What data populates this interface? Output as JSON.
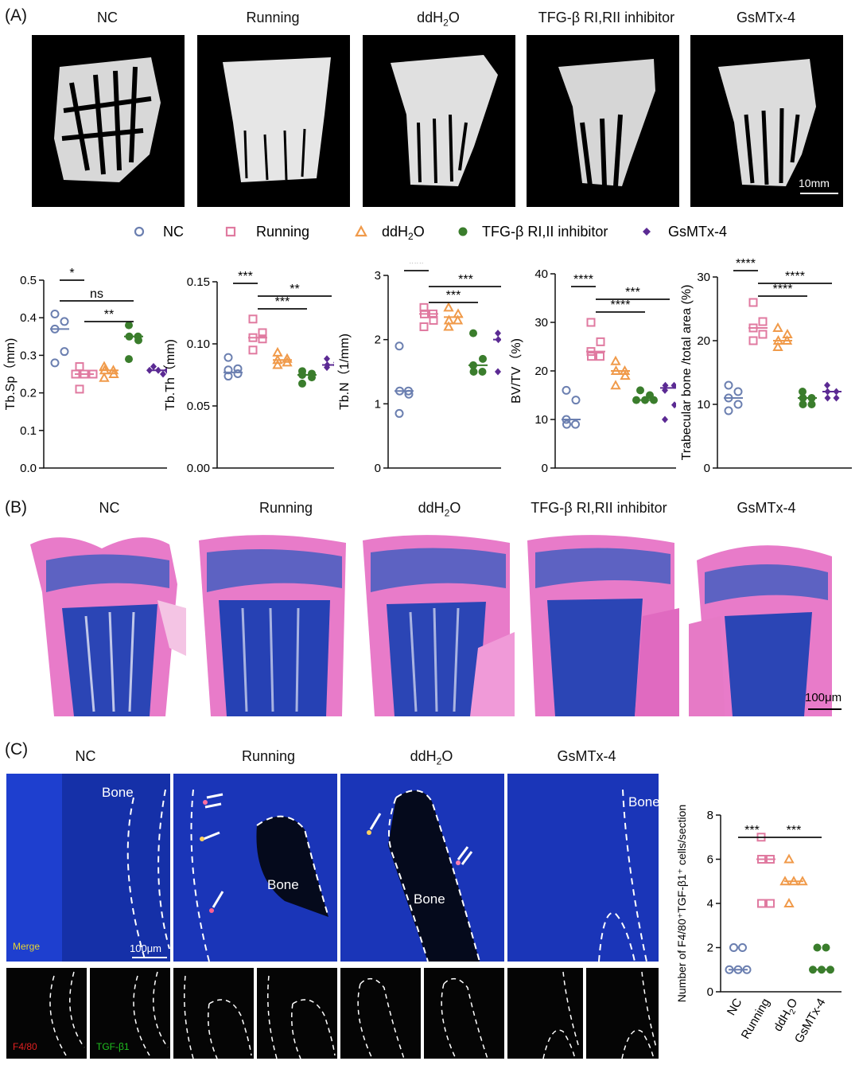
{
  "panelA": {
    "letter": "(A)",
    "groups": [
      "NC",
      "Running",
      "ddH2O",
      "TFG-β RI,RII inhibitor",
      "GsMTx-4"
    ],
    "scalebar": "10mm",
    "legend": [
      "NC",
      "Running",
      "ddH2O",
      "TFG-β RI,II inhibitor",
      "GsMTx-4"
    ]
  },
  "panelB": {
    "letter": "(B)",
    "groups": [
      "NC",
      "Running",
      "ddH2O",
      "TFG-β RI,RII inhibitor",
      "GsMTx-4"
    ],
    "scalebar": "100μm"
  },
  "panelC": {
    "letter": "(C)",
    "groups": [
      "NC",
      "Running",
      "ddH2O",
      "GsMTx-4"
    ],
    "bone": "Bone",
    "merge": "Merge",
    "scalebar": "100μm",
    "f480": "F4/80",
    "tgf": "TGF-β1"
  },
  "colors": {
    "NC": "#6b7fb0",
    "Running": "#e07aa0",
    "ddH2O": "#f09a4a",
    "Inhibitor": "#3a7d2c",
    "GsMTx": "#5b2a93"
  },
  "chart_data": [
    {
      "type": "scatter",
      "ylabel": "Tb.Sp（mm)",
      "ylim": [
        0,
        0.5
      ],
      "yticks": [
        0,
        0.1,
        0.2,
        0.3,
        0.4,
        0.5
      ],
      "categories": [
        "NC",
        "Running",
        "ddH2O",
        "TFG-β RI,II inhibitor",
        "GsMTx-4"
      ],
      "values": [
        [
          0.41,
          0.39,
          0.37,
          0.31,
          0.28
        ],
        [
          0.27,
          0.25,
          0.25,
          0.25,
          0.21
        ],
        [
          0.27,
          0.26,
          0.26,
          0.25,
          0.24
        ],
        [
          0.38,
          0.35,
          0.35,
          0.34,
          0.29
        ],
        [
          0.27,
          0.26,
          0.26,
          0.25,
          0.26
        ]
      ],
      "means": [
        0.37,
        0.25,
        0.26,
        0.35,
        0.26
      ],
      "sig": [
        {
          "a": 0,
          "b": 1,
          "label": "*"
        },
        {
          "a": 0,
          "b": 3,
          "label": "ns"
        },
        {
          "a": 1,
          "b": 3,
          "label": "**"
        }
      ]
    },
    {
      "type": "scatter",
      "ylabel": "Tb.Th（mm)",
      "ylim": [
        0,
        0.15
      ],
      "yticks": [
        0.0,
        0.05,
        0.1,
        0.15
      ],
      "categories": [
        "NC",
        "Running",
        "ddH2O",
        "TFG-β RI,II inhibitor",
        "GsMTx-4"
      ],
      "values": [
        [
          0.089,
          0.08,
          0.079,
          0.076,
          0.074
        ],
        [
          0.12,
          0.109,
          0.105,
          0.104,
          0.095
        ],
        [
          0.093,
          0.088,
          0.087,
          0.085,
          0.083
        ],
        [
          0.078,
          0.076,
          0.075,
          0.073,
          0.068
        ],
        [
          0.088,
          0.085,
          0.083,
          0.083,
          0.081
        ]
      ],
      "means": [
        0.077,
        0.105,
        0.087,
        0.075,
        0.083
      ],
      "sig": [
        {
          "a": 0,
          "b": 1,
          "label": "***"
        },
        {
          "a": 1,
          "b": 4,
          "label": "**"
        },
        {
          "a": 1,
          "b": 3,
          "label": "***"
        }
      ]
    },
    {
      "type": "scatter",
      "ylabel": "Tb.N（1/mm)",
      "ylim": [
        0,
        3
      ],
      "yticks": [
        0,
        1,
        2,
        3
      ],
      "categories": [
        "NC",
        "Running",
        "ddH2O",
        "TFG-β RI,II inhibitor",
        "GsMTx-4"
      ],
      "values": [
        [
          1.9,
          1.2,
          1.2,
          1.15,
          0.85
        ],
        [
          2.5,
          2.4,
          2.4,
          2.3,
          2.2
        ],
        [
          2.5,
          2.4,
          2.3,
          2.3,
          2.2
        ],
        [
          2.1,
          1.7,
          1.6,
          1.5,
          1.5
        ],
        [
          2.1,
          2.0,
          2.0,
          1.7,
          1.5
        ]
      ],
      "means": [
        1.2,
        2.4,
        2.35,
        1.6,
        2.0
      ],
      "sig": [
        {
          "a": 0,
          "b": 1,
          "label": "***"
        },
        {
          "a": 1,
          "b": 4,
          "label": "***"
        },
        {
          "a": 1,
          "b": 3,
          "label": "***"
        }
      ]
    },
    {
      "type": "scatter",
      "ylabel": "BV/TV（%)",
      "ylim": [
        0,
        40
      ],
      "yticks": [
        0,
        10,
        20,
        30,
        40
      ],
      "categories": [
        "NC",
        "Running",
        "ddH2O",
        "TFG-β RI,II inhibitor",
        "GsMTx-4"
      ],
      "values": [
        [
          16,
          14,
          10,
          9,
          9
        ],
        [
          30,
          26,
          24,
          23,
          23
        ],
        [
          22,
          20,
          20,
          19,
          17
        ],
        [
          16,
          15,
          14,
          14,
          14
        ],
        [
          17,
          17,
          16,
          13,
          10
        ]
      ],
      "means": [
        10,
        24,
        20,
        14,
        16.5
      ],
      "sig": [
        {
          "a": 0,
          "b": 1,
          "label": "****"
        },
        {
          "a": 1,
          "b": 4,
          "label": "***"
        },
        {
          "a": 1,
          "b": 3,
          "label": "****"
        }
      ]
    },
    {
      "type": "scatter",
      "ylabel": "Trabecular bone /total area (%)",
      "ylim": [
        0,
        30
      ],
      "yticks": [
        0,
        10,
        20,
        30
      ],
      "categories": [
        "NC",
        "Running",
        "ddH2O",
        "TFG-β RI,II inhibitor",
        "GsMTx-4"
      ],
      "values": [
        [
          13,
          12,
          11,
          10,
          9
        ],
        [
          26,
          23,
          22,
          21,
          20
        ],
        [
          22,
          21,
          20,
          20,
          19
        ],
        [
          12,
          11,
          11,
          10,
          10
        ],
        [
          13,
          12,
          12,
          11,
          11
        ]
      ],
      "means": [
        11,
        22,
        20,
        11,
        12
      ],
      "sig": [
        {
          "a": 0,
          "b": 1,
          "label": "****"
        },
        {
          "a": 1,
          "b": 4,
          "label": "****"
        },
        {
          "a": 1,
          "b": 3,
          "label": "****"
        }
      ]
    },
    {
      "type": "scatter",
      "ylabel": "Number of F4/80⁺TGF-β1⁺ cells/section",
      "ylim": [
        0,
        8
      ],
      "yticks": [
        0,
        2,
        4,
        6,
        8
      ],
      "categories": [
        "NC",
        "Running",
        "ddH2O",
        "GsMTx-4"
      ],
      "values": [
        [
          2,
          2,
          1,
          1,
          1
        ],
        [
          7,
          6,
          6,
          4,
          4
        ],
        [
          6,
          5,
          5,
          5,
          4
        ],
        [
          2,
          2,
          1,
          1,
          1
        ]
      ],
      "means": [
        1,
        6,
        5,
        1
      ],
      "sig": [
        {
          "a": 0,
          "b": 1,
          "label": "***"
        },
        {
          "a": 1,
          "b": 3,
          "label": "***"
        }
      ]
    }
  ]
}
